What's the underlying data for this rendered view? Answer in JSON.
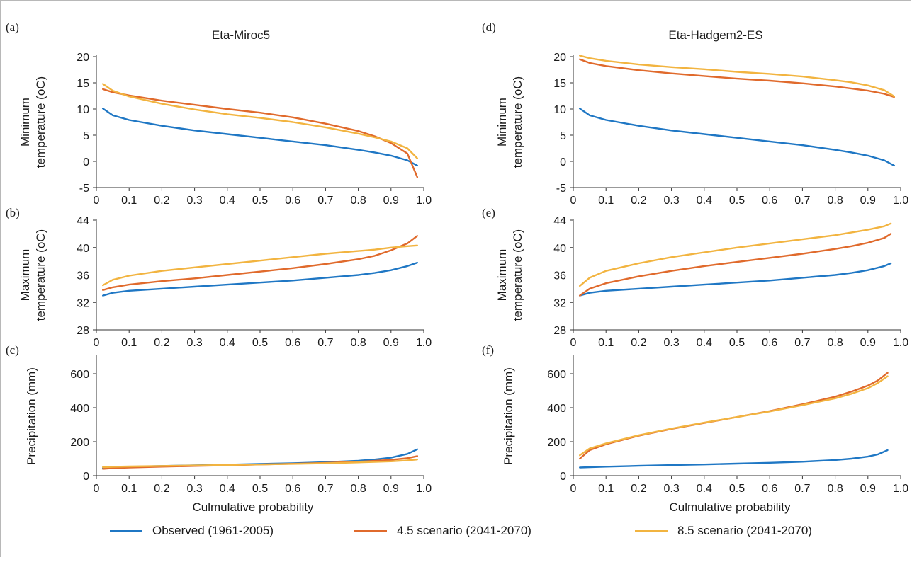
{
  "colors": {
    "observed": "#1f77c4",
    "rcp45": "#e06a2c",
    "rcp85": "#f2b440"
  },
  "legend": {
    "observed": "Observed (1961-2005)",
    "rcp45": "4.5 scenario (2041-2070)",
    "rcp85": "8.5 scenario (2041-2070)"
  },
  "columns": {
    "left_title": "Eta-Miroc5",
    "right_title": "Eta-Hadgem2-ES"
  },
  "chart_data": [
    {
      "panel": "(a)",
      "type": "line",
      "title": "Eta-Miroc5",
      "ylabel": "Minimum temperature (oC)",
      "xlabel": "",
      "xlim": [
        0,
        1
      ],
      "ylim": [
        -5,
        20
      ],
      "xticks": [
        "0",
        "0.1",
        "0.2",
        "0.3",
        "0.4",
        "0.5",
        "0.6",
        "0.7",
        "0.8",
        "0.9",
        "1.0"
      ],
      "yticks": [
        "-5",
        "0",
        "5",
        "10",
        "15",
        "20"
      ],
      "grid": false,
      "x": [
        0.02,
        0.05,
        0.1,
        0.2,
        0.3,
        0.4,
        0.5,
        0.6,
        0.7,
        0.8,
        0.85,
        0.9,
        0.95,
        0.98
      ],
      "series": [
        {
          "name": "Observed (1961-2005)",
          "key": "observed",
          "values": [
            10.1,
            8.8,
            7.9,
            6.8,
            5.9,
            5.2,
            4.5,
            3.8,
            3.1,
            2.2,
            1.7,
            1.1,
            0.2,
            -0.8
          ]
        },
        {
          "name": "4.5 scenario (2041-2070)",
          "key": "rcp45",
          "values": [
            13.8,
            13.2,
            12.6,
            11.6,
            10.8,
            10.0,
            9.3,
            8.4,
            7.2,
            5.8,
            4.8,
            3.5,
            1.5,
            -3.0
          ]
        },
        {
          "name": "8.5 scenario (2041-2070)",
          "key": "rcp85",
          "values": [
            14.8,
            13.5,
            12.4,
            11.0,
            9.9,
            9.0,
            8.3,
            7.5,
            6.5,
            5.3,
            4.6,
            3.8,
            2.5,
            0.6
          ]
        }
      ]
    },
    {
      "panel": "(b)",
      "type": "line",
      "title": "",
      "ylabel": "Maximum temperature (oC)",
      "xlabel": "",
      "xlim": [
        0,
        1
      ],
      "ylim": [
        28,
        44
      ],
      "xticks": [
        "0",
        "0.1",
        "0.2",
        "0.3",
        "0.4",
        "0.5",
        "0.6",
        "0.7",
        "0.8",
        "0.9",
        "1.0"
      ],
      "yticks": [
        "28",
        "32",
        "36",
        "40",
        "44"
      ],
      "grid": false,
      "x": [
        0.02,
        0.05,
        0.1,
        0.2,
        0.3,
        0.4,
        0.5,
        0.6,
        0.7,
        0.8,
        0.85,
        0.9,
        0.95,
        0.98
      ],
      "series": [
        {
          "name": "Observed (1961-2005)",
          "key": "observed",
          "values": [
            33.0,
            33.4,
            33.7,
            34.0,
            34.3,
            34.6,
            34.9,
            35.2,
            35.6,
            36.0,
            36.3,
            36.7,
            37.3,
            37.8
          ]
        },
        {
          "name": "4.5 scenario (2041-2070)",
          "key": "rcp45",
          "values": [
            33.8,
            34.2,
            34.6,
            35.1,
            35.5,
            36.0,
            36.5,
            37.0,
            37.6,
            38.3,
            38.8,
            39.6,
            40.6,
            41.7
          ]
        },
        {
          "name": "8.5 scenario (2041-2070)",
          "key": "rcp85",
          "values": [
            34.5,
            35.3,
            35.9,
            36.6,
            37.1,
            37.6,
            38.1,
            38.6,
            39.1,
            39.5,
            39.7,
            40.0,
            40.2,
            40.3
          ]
        }
      ]
    },
    {
      "panel": "(c)",
      "type": "line",
      "title": "",
      "ylabel": "Precipitation (mm)",
      "xlabel": "Culmulative probability",
      "xlim": [
        0,
        1
      ],
      "ylim": [
        0,
        700
      ],
      "xticks": [
        "0",
        "0.1",
        "0.2",
        "0.3",
        "0.4",
        "0.5",
        "0.6",
        "0.7",
        "0.8",
        "0.9",
        "1.0"
      ],
      "yticks": [
        "0",
        "200",
        "400",
        "600"
      ],
      "grid": false,
      "x": [
        0.02,
        0.05,
        0.1,
        0.2,
        0.3,
        0.4,
        0.5,
        0.6,
        0.7,
        0.8,
        0.85,
        0.9,
        0.95,
        0.98
      ],
      "series": [
        {
          "name": "Observed (1961-2005)",
          "key": "observed",
          "values": [
            45,
            48,
            52,
            57,
            61,
            65,
            69,
            73,
            79,
            88,
            95,
            106,
            128,
            155
          ]
        },
        {
          "name": "4.5 scenario (2041-2070)",
          "key": "rcp45",
          "values": [
            40,
            44,
            48,
            53,
            57,
            61,
            66,
            70,
            75,
            82,
            87,
            93,
            103,
            115
          ]
        },
        {
          "name": "8.5 scenario (2041-2070)",
          "key": "rcp85",
          "values": [
            50,
            52,
            54,
            57,
            60,
            63,
            66,
            69,
            73,
            78,
            81,
            84,
            90,
            95
          ]
        }
      ]
    },
    {
      "panel": "(d)",
      "type": "line",
      "title": "Eta-Hadgem2-ES",
      "ylabel": "Minimum temperature (oC)",
      "xlabel": "",
      "xlim": [
        0,
        1
      ],
      "ylim": [
        -5,
        20
      ],
      "xticks": [
        "0",
        "0.1",
        "0.2",
        "0.3",
        "0.4",
        "0.5",
        "0.6",
        "0.7",
        "0.8",
        "0.9",
        "1.0"
      ],
      "yticks": [
        "-5",
        "0",
        "5",
        "10",
        "15",
        "20"
      ],
      "grid": false,
      "x": [
        0.02,
        0.05,
        0.1,
        0.2,
        0.3,
        0.4,
        0.5,
        0.6,
        0.7,
        0.8,
        0.85,
        0.9,
        0.95,
        0.98
      ],
      "series": [
        {
          "name": "Observed (1961-2005)",
          "key": "observed",
          "values": [
            10.1,
            8.8,
            7.9,
            6.8,
            5.9,
            5.2,
            4.5,
            3.8,
            3.1,
            2.2,
            1.7,
            1.1,
            0.2,
            -0.8
          ]
        },
        {
          "name": "4.5 scenario (2041-2070)",
          "key": "rcp45",
          "values": [
            19.5,
            18.8,
            18.2,
            17.4,
            16.8,
            16.3,
            15.8,
            15.4,
            14.9,
            14.3,
            13.9,
            13.5,
            12.9,
            12.3
          ]
        },
        {
          "name": "8.5 scenario (2041-2070)",
          "key": "rcp85",
          "values": [
            20.2,
            19.7,
            19.2,
            18.5,
            18.0,
            17.6,
            17.1,
            16.7,
            16.2,
            15.5,
            15.1,
            14.5,
            13.6,
            12.4
          ]
        }
      ]
    },
    {
      "panel": "(e)",
      "type": "line",
      "title": "",
      "ylabel": "Maximum temperature (oC)",
      "xlabel": "",
      "xlim": [
        0,
        1
      ],
      "ylim": [
        28,
        44
      ],
      "xticks": [
        "0",
        "0.1",
        "0.2",
        "0.3",
        "0.4",
        "0.5",
        "0.6",
        "0.7",
        "0.8",
        "0.9",
        "1.0"
      ],
      "yticks": [
        "28",
        "32",
        "36",
        "40",
        "44"
      ],
      "grid": false,
      "x": [
        0.02,
        0.05,
        0.1,
        0.2,
        0.3,
        0.4,
        0.5,
        0.6,
        0.7,
        0.8,
        0.85,
        0.9,
        0.95,
        0.97
      ],
      "series": [
        {
          "name": "Observed (1961-2005)",
          "key": "observed",
          "values": [
            33.0,
            33.4,
            33.7,
            34.0,
            34.3,
            34.6,
            34.9,
            35.2,
            35.6,
            36.0,
            36.3,
            36.7,
            37.3,
            37.7
          ]
        },
        {
          "name": "4.5 scenario (2041-2070)",
          "key": "rcp45",
          "values": [
            33.0,
            34.0,
            34.8,
            35.8,
            36.6,
            37.3,
            37.9,
            38.5,
            39.1,
            39.8,
            40.2,
            40.7,
            41.4,
            42.0
          ]
        },
        {
          "name": "8.5 scenario (2041-2070)",
          "key": "rcp85",
          "values": [
            34.4,
            35.6,
            36.6,
            37.7,
            38.6,
            39.3,
            40.0,
            40.6,
            41.2,
            41.8,
            42.2,
            42.6,
            43.1,
            43.5
          ]
        }
      ]
    },
    {
      "panel": "(f)",
      "type": "line",
      "title": "",
      "ylabel": "Precipitation (mm)",
      "xlabel": "Culmulative probability",
      "xlim": [
        0,
        1
      ],
      "ylim": [
        0,
        700
      ],
      "xticks": [
        "0",
        "0.1",
        "0.2",
        "0.3",
        "0.4",
        "0.5",
        "0.6",
        "0.7",
        "0.8",
        "0.9",
        "1.0"
      ],
      "yticks": [
        "0",
        "200",
        "400",
        "600"
      ],
      "grid": false,
      "x": [
        0.02,
        0.05,
        0.1,
        0.2,
        0.3,
        0.4,
        0.5,
        0.6,
        0.7,
        0.8,
        0.85,
        0.9,
        0.93,
        0.96
      ],
      "series": [
        {
          "name": "Observed (1961-2005)",
          "key": "observed",
          "values": [
            48,
            50,
            53,
            58,
            62,
            66,
            71,
            76,
            82,
            92,
            100,
            112,
            125,
            150
          ]
        },
        {
          "name": "4.5 scenario (2041-2070)",
          "key": "rcp45",
          "values": [
            100,
            150,
            185,
            235,
            275,
            310,
            345,
            380,
            420,
            465,
            495,
            530,
            560,
            605
          ]
        },
        {
          "name": "8.5 scenario (2041-2070)",
          "key": "rcp85",
          "values": [
            120,
            160,
            190,
            238,
            277,
            312,
            345,
            378,
            415,
            455,
            482,
            515,
            545,
            585
          ]
        }
      ]
    }
  ]
}
